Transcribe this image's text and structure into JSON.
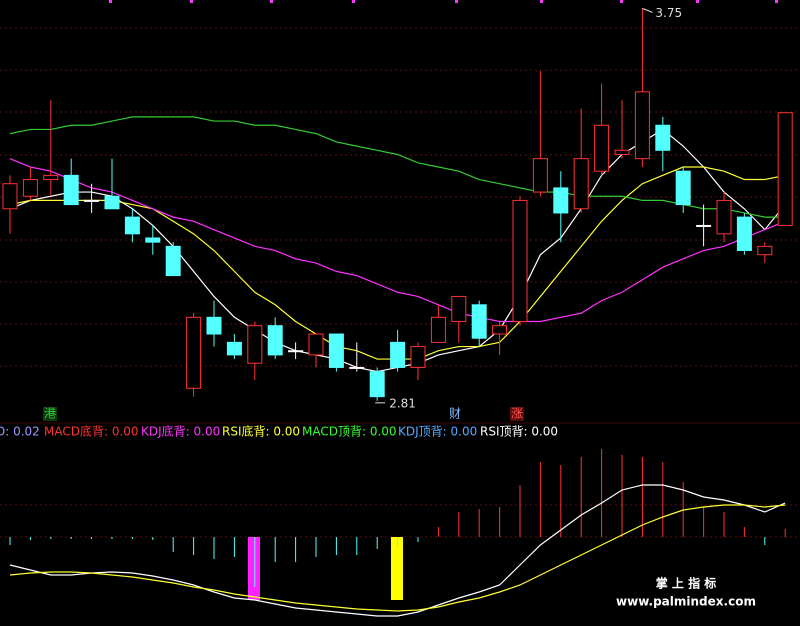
{
  "chart_data": [
    {
      "type": "candlestick",
      "ylim": [
        2.8,
        3.77
      ],
      "up_color": "#ff3232",
      "down_color": "#54ffff",
      "flat_color": "#ffffff",
      "open": [
        3.27,
        3.3,
        3.34,
        3.35,
        3.29,
        3.3,
        3.25,
        3.2,
        3.18,
        2.84,
        3.01,
        2.95,
        2.9,
        2.99,
        2.93,
        2.92,
        2.97,
        2.89,
        2.88,
        2.95,
        2.89,
        2.95,
        3.0,
        3.04,
        2.97,
        3.0,
        3.31,
        3.32,
        3.27,
        3.36,
        3.4,
        3.39,
        3.47,
        3.36,
        3.23,
        3.21,
        3.25,
        3.16,
        3.23
      ],
      "close": [
        3.33,
        3.34,
        3.35,
        3.28,
        3.29,
        3.27,
        3.21,
        3.19,
        3.11,
        3.01,
        2.97,
        2.92,
        2.99,
        2.92,
        2.93,
        2.97,
        2.89,
        2.89,
        2.82,
        2.89,
        2.94,
        3.01,
        3.06,
        2.96,
        2.99,
        3.29,
        3.39,
        3.26,
        3.39,
        3.47,
        3.41,
        3.55,
        3.41,
        3.28,
        3.23,
        3.29,
        3.17,
        3.18,
        3.5
      ],
      "high": [
        3.35,
        3.37,
        3.53,
        3.39,
        3.33,
        3.39,
        3.27,
        3.23,
        3.19,
        3.02,
        3.05,
        2.97,
        3.0,
        3.01,
        2.95,
        2.97,
        2.97,
        2.95,
        2.89,
        2.98,
        2.95,
        3.04,
        3.06,
        3.05,
        3.0,
        3.3,
        3.6,
        3.36,
        3.51,
        3.57,
        3.53,
        3.75,
        3.49,
        3.37,
        3.28,
        3.31,
        3.26,
        3.19,
        3.5
      ],
      "low": [
        3.21,
        3.29,
        3.3,
        3.28,
        3.26,
        3.27,
        3.19,
        3.16,
        3.11,
        2.82,
        2.94,
        2.91,
        2.86,
        2.91,
        2.91,
        2.89,
        2.88,
        2.88,
        2.81,
        2.88,
        2.86,
        2.95,
        2.95,
        2.94,
        2.92,
        2.99,
        3.3,
        3.19,
        3.26,
        3.35,
        3.39,
        3.37,
        3.36,
        3.26,
        3.18,
        3.19,
        3.16,
        3.14,
        3.23
      ],
      "series": [
        {
          "color": "#ffffff",
          "values": [
            3.27,
            3.29,
            3.3,
            3.31,
            3.31,
            3.3,
            3.27,
            3.23,
            3.18,
            3.12,
            3.06,
            3.01,
            2.98,
            2.95,
            2.93,
            2.92,
            2.91,
            2.89,
            2.88,
            2.89,
            2.9,
            2.92,
            2.93,
            2.94,
            2.98,
            3.06,
            3.16,
            3.2,
            3.27,
            3.35,
            3.4,
            3.43,
            3.46,
            3.42,
            3.37,
            3.31,
            3.27,
            3.22,
            3.28
          ]
        },
        {
          "color": "#ffff33",
          "values": [
            3.28,
            3.29,
            3.29,
            3.29,
            3.29,
            3.29,
            3.28,
            3.27,
            3.24,
            3.21,
            3.17,
            3.12,
            3.07,
            3.04,
            3.0,
            2.97,
            2.94,
            2.93,
            2.91,
            2.91,
            2.91,
            2.93,
            2.94,
            2.94,
            2.95,
            3.0,
            3.06,
            3.12,
            3.18,
            3.24,
            3.29,
            3.33,
            3.35,
            3.37,
            3.37,
            3.36,
            3.34,
            3.34,
            3.35
          ]
        },
        {
          "color": "#ff33ff",
          "values": [
            3.39,
            3.37,
            3.36,
            3.34,
            3.32,
            3.31,
            3.29,
            3.27,
            3.25,
            3.24,
            3.22,
            3.2,
            3.18,
            3.17,
            3.15,
            3.14,
            3.12,
            3.11,
            3.09,
            3.07,
            3.06,
            3.04,
            3.02,
            3.01,
            3.0,
            3.0,
            3.0,
            3.01,
            3.02,
            3.05,
            3.07,
            3.1,
            3.13,
            3.15,
            3.17,
            3.18,
            3.2,
            3.22,
            3.24
          ]
        },
        {
          "color": "#33cc33",
          "values": [
            3.45,
            3.46,
            3.46,
            3.47,
            3.47,
            3.48,
            3.49,
            3.49,
            3.49,
            3.49,
            3.48,
            3.48,
            3.47,
            3.47,
            3.46,
            3.45,
            3.43,
            3.42,
            3.41,
            3.4,
            3.38,
            3.37,
            3.36,
            3.34,
            3.33,
            3.32,
            3.31,
            3.31,
            3.3,
            3.3,
            3.3,
            3.29,
            3.29,
            3.28,
            3.27,
            3.27,
            3.26,
            3.25,
            3.25
          ]
        }
      ],
      "markers": [
        {
          "text": "港",
          "color": "#33cc33",
          "background": "#0d3a0d"
        },
        {
          "text": "财",
          "color": "#88bbff",
          "background": "#000000"
        },
        {
          "text": "涨",
          "color": "#ff5555",
          "background": "#5a0d0d"
        }
      ]
    },
    {
      "type": "macd",
      "ylim": [
        -89,
        100
      ],
      "up_color": "#ff3232",
      "down_color": "#54ffff",
      "legend": [
        {
          "text": "D: 0.02",
          "color": "#9999ff"
        },
        {
          "text": "MACD底背: 0.00",
          "color": "#ff3232"
        },
        {
          "text": "KDJ底背: 0.00",
          "color": "#ff33ff"
        },
        {
          "text": "RSI底背: 0.00",
          "color": "#ffff33"
        },
        {
          "text": "MACD顶背: 0.00",
          "color": "#33ff33"
        },
        {
          "text": "KDJ顶背: 0.00",
          "color": "#55aaff"
        },
        {
          "text": "RSI顶背: 0.00",
          "color": "#ffffff"
        }
      ],
      "values": [
        -8,
        -3,
        -2,
        -2,
        -2,
        -2,
        -2,
        -3,
        -15,
        -18,
        -22,
        -20,
        -50,
        -25,
        -25,
        -20,
        -18,
        -18,
        -12,
        -10,
        -5,
        10,
        25,
        28,
        30,
        52,
        75,
        72,
        80,
        88,
        82,
        80,
        75,
        55,
        30,
        25,
        10,
        -8,
        8
      ],
      "series": [
        {
          "color": "#ffffff",
          "values": [
            -28,
            -33,
            -38,
            -38,
            -36,
            -35,
            -36,
            -39,
            -43,
            -48,
            -55,
            -61,
            -63,
            -67,
            -71,
            -73,
            -75,
            -77,
            -79,
            -79,
            -75,
            -68,
            -61,
            -55,
            -48,
            -28,
            -8,
            7,
            22,
            34,
            47,
            52,
            52,
            47,
            40,
            37,
            32,
            25,
            34
          ]
        },
        {
          "color": "#ffff33",
          "values": [
            -38,
            -36,
            -35,
            -35,
            -36,
            -38,
            -40,
            -43,
            -46,
            -50,
            -53,
            -57,
            -60,
            -63,
            -66,
            -68,
            -70,
            -72,
            -73,
            -74,
            -73,
            -70,
            -65,
            -61,
            -55,
            -48,
            -38,
            -28,
            -18,
            -8,
            2,
            12,
            20,
            27,
            30,
            32,
            32,
            30,
            32
          ]
        }
      ],
      "watermark": {
        "title": "掌 上 指 标",
        "url": "www.palmindex.com"
      }
    }
  ]
}
